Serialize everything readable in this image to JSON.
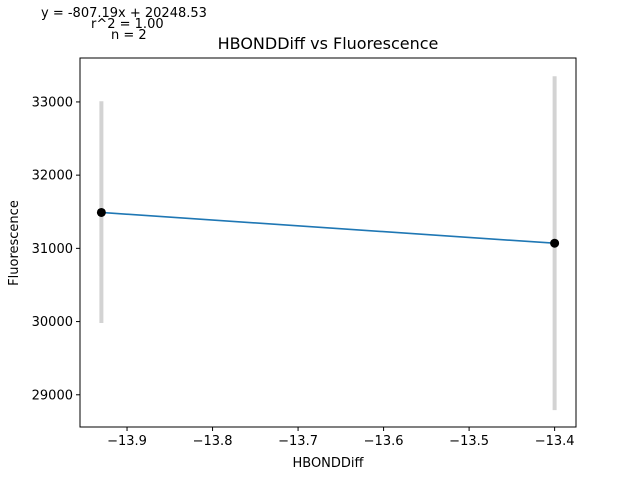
{
  "chart_data": {
    "type": "scatter",
    "title": "HBONDDiff vs Fluorescence",
    "xlabel": "HBONDDiff",
    "ylabel": "Fluorescence",
    "xlim": [
      -13.955,
      -13.375
    ],
    "ylim": [
      28560,
      33600
    ],
    "xticks": [
      {
        "value": -13.9,
        "label": "−13.9"
      },
      {
        "value": -13.8,
        "label": "−13.8"
      },
      {
        "value": -13.7,
        "label": "−13.7"
      },
      {
        "value": -13.6,
        "label": "−13.6"
      },
      {
        "value": -13.5,
        "label": "−13.5"
      },
      {
        "value": -13.4,
        "label": "−13.4"
      }
    ],
    "yticks": [
      {
        "value": 29000,
        "label": "29000"
      },
      {
        "value": 30000,
        "label": "30000"
      },
      {
        "value": 31000,
        "label": "31000"
      },
      {
        "value": 32000,
        "label": "32000"
      },
      {
        "value": 33000,
        "label": "33000"
      }
    ],
    "points": [
      {
        "x": -13.93,
        "y": 31490,
        "err_low": 29980,
        "err_high": 33010
      },
      {
        "x": -13.4,
        "y": 31070,
        "err_low": 28790,
        "err_high": 33350
      }
    ],
    "fit_line": {
      "x": [
        -13.93,
        -13.4
      ],
      "y": [
        31490,
        31070
      ]
    },
    "annotations": {
      "equation": "y = -807.19x + 20248.53",
      "r2": "r^2 = 1.00",
      "n": "n = 2"
    },
    "colors": {
      "line": "#1f77b4",
      "marker": "#000000",
      "errorbar": "#d3d3d3"
    },
    "grid": false
  }
}
